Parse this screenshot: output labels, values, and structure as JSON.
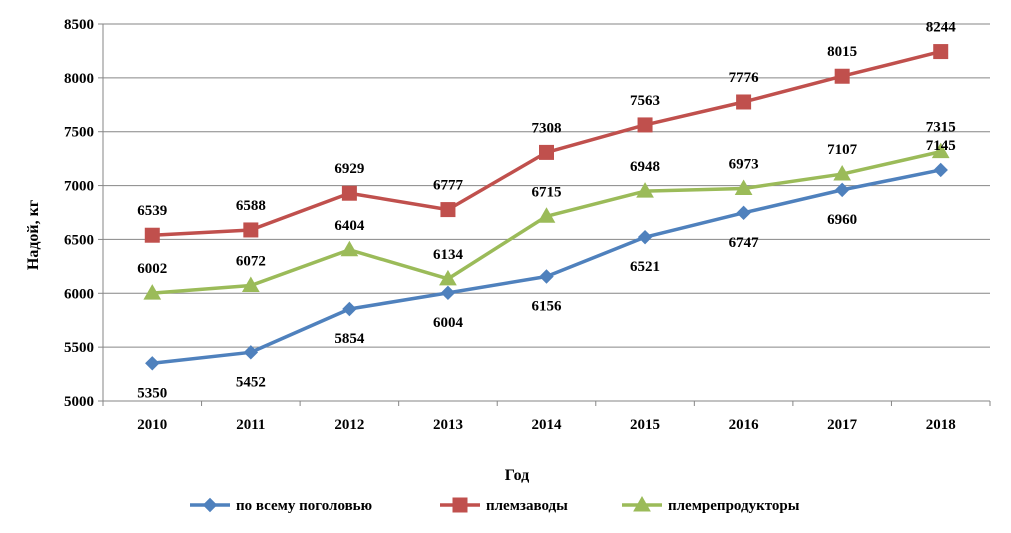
{
  "chart_data": {
    "type": "line",
    "title": "",
    "xlabel": "Год",
    "ylabel": "Надой, кг",
    "categories": [
      "2010",
      "2011",
      "2012",
      "2013",
      "2014",
      "2015",
      "2016",
      "2017",
      "2018"
    ],
    "ylim": [
      5000,
      8500
    ],
    "ytick_step": 500,
    "grid": true,
    "legend_position": "bottom",
    "series": [
      {
        "name": "по всему поголовью",
        "color": "#4F81BD",
        "marker": "diamond",
        "values": [
          5350,
          5452,
          5854,
          6004,
          6156,
          6521,
          6747,
          6960,
          7145
        ],
        "label_pos": [
          "below",
          "below",
          "below",
          "below",
          "below",
          "below",
          "below",
          "below",
          "above"
        ]
      },
      {
        "name": "племзаводы",
        "color": "#C0504D",
        "marker": "square",
        "values": [
          6539,
          6588,
          6929,
          6777,
          7308,
          7563,
          7776,
          8015,
          8244
        ],
        "label_pos": [
          "above",
          "above",
          "above",
          "above",
          "above",
          "above",
          "above",
          "above",
          "above"
        ]
      },
      {
        "name": "племрепродукторы",
        "color": "#9BBB59",
        "marker": "triangle",
        "values": [
          6002,
          6072,
          6404,
          6134,
          6715,
          6948,
          6973,
          7107,
          7315
        ],
        "label_pos": [
          "above",
          "above",
          "above",
          "above",
          "above",
          "above",
          "above",
          "above",
          "above"
        ]
      }
    ]
  }
}
